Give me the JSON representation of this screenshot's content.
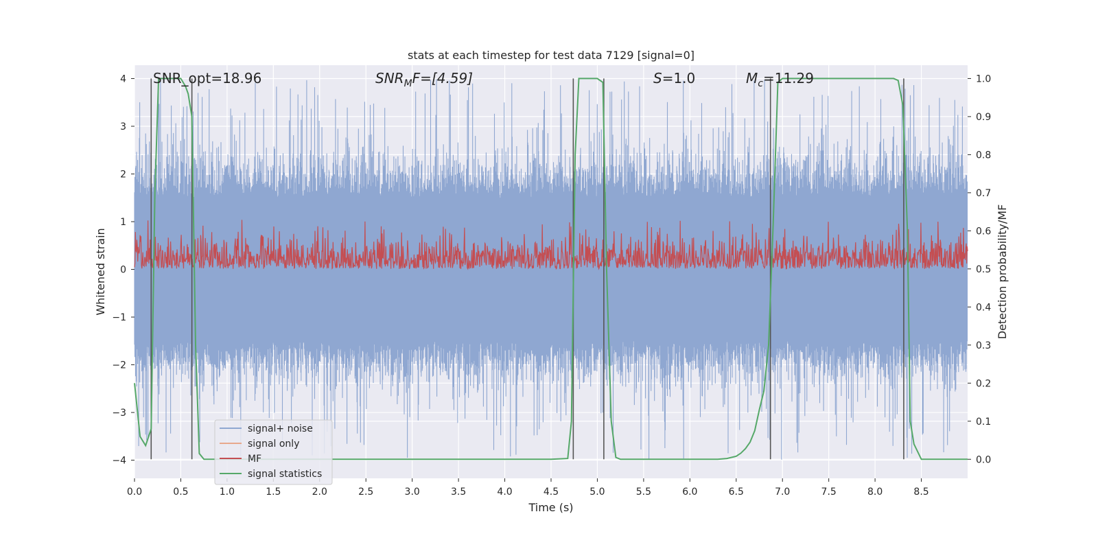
{
  "chart_data": {
    "type": "line",
    "title": "stats at each timestep for test data 7129 [signal=0]",
    "xlabel": "Time (s)",
    "ylabel_left": "Whitened strain",
    "ylabel_right": "Detection probability/MF",
    "xlim": [
      0.0,
      9.0
    ],
    "ylim_left": [
      -4.38,
      4.28
    ],
    "ylim_right": [
      -0.05,
      1.035
    ],
    "xticks": [
      0.0,
      0.5,
      1.0,
      1.5,
      2.0,
      2.5,
      3.0,
      3.5,
      4.0,
      4.5,
      5.0,
      5.5,
      6.0,
      6.5,
      7.0,
      7.5,
      8.0,
      8.5
    ],
    "xtick_labels": [
      "0.0",
      "0.5",
      "1.0",
      "1.5",
      "2.0",
      "2.5",
      "3.0",
      "3.5",
      "4.0",
      "4.5",
      "5.0",
      "5.5",
      "6.0",
      "6.5",
      "7.0",
      "7.5",
      "8.0",
      "8.5"
    ],
    "yticks_left": [
      -4,
      -3,
      -2,
      -1,
      0,
      1,
      2,
      3,
      4
    ],
    "ytick_labels_left": [
      "−4",
      "−3",
      "−2",
      "−1",
      "0",
      "1",
      "2",
      "3",
      "4"
    ],
    "yticks_right": [
      0.0,
      0.1,
      0.2,
      0.3,
      0.4,
      0.5,
      0.6,
      0.7,
      0.8,
      0.9,
      1.0
    ],
    "ytick_labels_right": [
      "0.0",
      "0.1",
      "0.2",
      "0.3",
      "0.4",
      "0.5",
      "0.6",
      "0.7",
      "0.8",
      "0.9",
      "1.0"
    ],
    "grid": true,
    "legend_position": "lower-left",
    "annotations": {
      "snr_opt": "SNR_opt=18.96",
      "snr_mf_prefix": "SNR",
      "snr_mf_sub": "M",
      "snr_mf_suffix": "F=[4.59]",
      "s_prefix": "S",
      "s_suffix": "=1.0",
      "mc_prefix": "M",
      "mc_sub": "c",
      "mc_suffix": "=11.29"
    },
    "vertical_lines_x": [
      0.18,
      0.62,
      4.74,
      5.07,
      6.87,
      8.31
    ],
    "series": [
      {
        "name": "signal+ noise",
        "color": "#8fa7d1",
        "axis": "left",
        "kind": "noise",
        "amplitude_typical": 1.5,
        "amplitude_max": 4.0
      },
      {
        "name": "signal only",
        "color": "#e8a88c",
        "axis": "left",
        "kind": "empty"
      },
      {
        "name": "MF",
        "color": "#c44e52",
        "axis": "right",
        "kind": "mf",
        "baseline": 0.5,
        "range": [
          0.5,
          0.63
        ]
      },
      {
        "name": "signal statistics",
        "color": "#55a868",
        "axis": "right",
        "kind": "line",
        "x": [
          0.0,
          0.06,
          0.12,
          0.18,
          0.22,
          0.26,
          0.3,
          0.35,
          0.4,
          0.45,
          0.5,
          0.55,
          0.58,
          0.62,
          0.66,
          0.7,
          0.75,
          1.0,
          2.0,
          3.0,
          4.0,
          4.5,
          4.68,
          4.72,
          4.76,
          4.8,
          4.85,
          4.9,
          5.0,
          5.06,
          5.1,
          5.15,
          5.2,
          5.25,
          6.0,
          6.3,
          6.4,
          6.5,
          6.55,
          6.6,
          6.65,
          6.7,
          6.75,
          6.8,
          6.85,
          6.9,
          6.95,
          7.0,
          7.5,
          8.0,
          8.2,
          8.25,
          8.3,
          8.35,
          8.38,
          8.42,
          8.5,
          9.0
        ],
        "y": [
          0.2,
          0.06,
          0.036,
          0.08,
          0.7,
          1.0,
          1.0,
          1.0,
          1.0,
          1.0,
          1.0,
          0.98,
          0.96,
          0.9,
          0.3,
          0.015,
          0.0,
          0.0,
          0.0,
          0.0,
          0.0,
          0.0,
          0.002,
          0.1,
          0.8,
          1.0,
          1.0,
          1.0,
          1.0,
          0.99,
          0.5,
          0.1,
          0.005,
          0.0,
          0.0,
          0.0,
          0.002,
          0.008,
          0.016,
          0.028,
          0.045,
          0.075,
          0.13,
          0.18,
          0.3,
          0.62,
          0.99,
          1.0,
          1.0,
          1.0,
          1.0,
          0.995,
          0.93,
          0.6,
          0.1,
          0.04,
          0.0,
          0.0
        ]
      }
    ]
  }
}
